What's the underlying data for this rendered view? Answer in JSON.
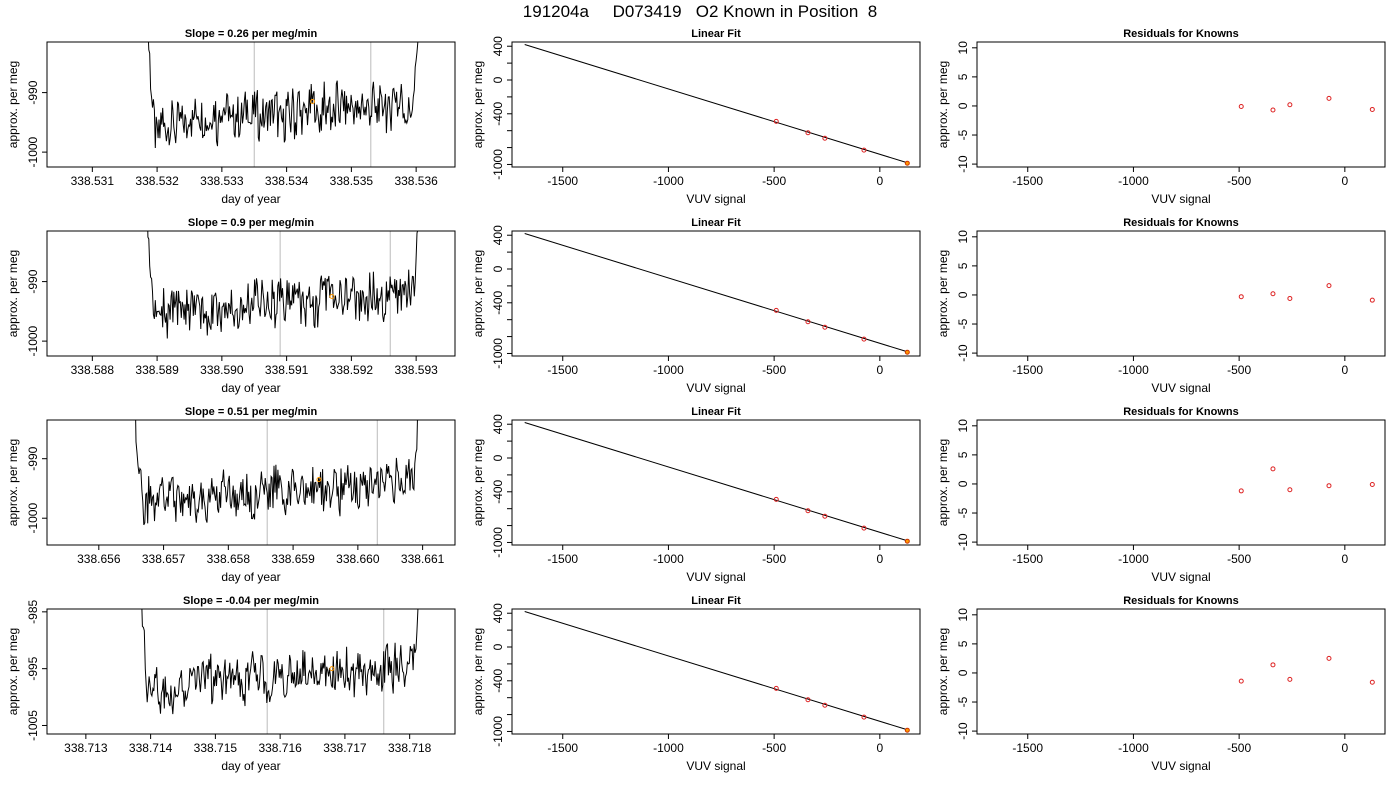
{
  "title": "191204a     D073419   O2 Known in Position  8",
  "colors": {
    "trace": "#000000",
    "vline": "#bbbbbb",
    "point": "#dd2222",
    "highlight": "#ff9900",
    "fitline": "#000000"
  },
  "chart_data": [
    {
      "type": "line",
      "row": 0,
      "title": "Slope =  0.26  per meg/min",
      "xlabel": "day of year",
      "ylabel": "approx. per meg",
      "xlim": [
        338.5303,
        338.5366
      ],
      "ylim": [
        -1002.5,
        -981.5
      ],
      "xticks": [
        "338.531",
        "338.532",
        "338.533",
        "338.534",
        "338.535",
        "338.536"
      ],
      "yticks": [
        "-1000",
        "-990"
      ],
      "vlines": [
        338.5335,
        338.5353
      ],
      "marker": [
        338.5344,
        -991.5
      ],
      "trace_start": 338.5318,
      "trace_end": 338.5361,
      "baseline": -993.5
    },
    {
      "type": "scatter",
      "row": 0,
      "title": "Linear Fit",
      "xlabel": "VUV signal",
      "ylabel": "approx. per meg",
      "xlim": [
        -1740,
        190
      ],
      "ylim": [
        -1030,
        450
      ],
      "xticks": [
        "-1500",
        "-1000",
        "-500",
        "0"
      ],
      "yticks": [
        "-1000",
        "-800",
        "-600",
        "-400",
        "-200",
        "0",
        "200",
        "400"
      ],
      "ytick_labels": [
        "-1000",
        "",
        "",
        "-400",
        "",
        "0",
        "",
        "400"
      ],
      "fit_line": [
        [
          -1680,
          420
        ],
        [
          130,
          -980
        ]
      ],
      "points": [
        [
          -490,
          -490
        ],
        [
          -340,
          -625
        ],
        [
          -260,
          -690
        ],
        [
          -75,
          -830
        ],
        [
          130,
          -985
        ]
      ]
    },
    {
      "type": "scatter",
      "row": 0,
      "title": "Residuals for Knowns",
      "xlabel": "VUV signal",
      "ylabel": "approx. per meg",
      "xlim": [
        -1740,
        190
      ],
      "ylim": [
        -10.5,
        11
      ],
      "xticks": [
        "-1500",
        "-1000",
        "-500",
        "0"
      ],
      "yticks": [
        "-10",
        "-5",
        "0",
        "5",
        "10"
      ],
      "points": [
        [
          -490,
          -0.1
        ],
        [
          -340,
          -0.7
        ],
        [
          -260,
          0.2
        ],
        [
          -75,
          1.3
        ],
        [
          130,
          -0.6
        ]
      ]
    },
    {
      "type": "line",
      "row": 1,
      "title": "Slope =  0.9  per meg/min",
      "xlabel": "day of year",
      "ylabel": "approx. per meg",
      "xlim": [
        338.5873,
        338.5936
      ],
      "ylim": [
        -1002.5,
        -981.5
      ],
      "xticks": [
        "338.588",
        "338.589",
        "338.590",
        "338.591",
        "338.592",
        "338.593"
      ],
      "yticks": [
        "-1000",
        "-990"
      ],
      "vlines": [
        338.5909,
        338.5926
      ],
      "marker": [
        338.5917,
        -992.5
      ],
      "trace_start": 338.5888,
      "trace_end": 338.5931,
      "baseline": -994
    },
    {
      "type": "scatter",
      "row": 1,
      "title": "Linear Fit",
      "xlabel": "VUV signal",
      "ylabel": "approx. per meg",
      "xlim": [
        -1740,
        190
      ],
      "ylim": [
        -1030,
        450
      ],
      "xticks": [
        "-1500",
        "-1000",
        "-500",
        "0"
      ],
      "yticks": [
        "-1000",
        "-800",
        "-600",
        "-400",
        "-200",
        "0",
        "200",
        "400"
      ],
      "ytick_labels": [
        "-1000",
        "",
        "",
        "-400",
        "",
        "0",
        "",
        "400"
      ],
      "fit_line": [
        [
          -1680,
          420
        ],
        [
          130,
          -980
        ]
      ],
      "points": [
        [
          -490,
          -490
        ],
        [
          -340,
          -625
        ],
        [
          -260,
          -690
        ],
        [
          -75,
          -830
        ],
        [
          130,
          -985
        ]
      ]
    },
    {
      "type": "scatter",
      "row": 1,
      "title": "Residuals for Knowns",
      "xlabel": "VUV signal",
      "ylabel": "approx. per meg",
      "xlim": [
        -1740,
        190
      ],
      "ylim": [
        -10.5,
        11
      ],
      "xticks": [
        "-1500",
        "-1000",
        "-500",
        "0"
      ],
      "yticks": [
        "-10",
        "-5",
        "0",
        "5",
        "10"
      ],
      "points": [
        [
          -490,
          -0.3
        ],
        [
          -340,
          0.2
        ],
        [
          -260,
          -0.6
        ],
        [
          -75,
          1.6
        ],
        [
          130,
          -0.9
        ]
      ]
    },
    {
      "type": "line",
      "row": 2,
      "title": "Slope =  0.51  per meg/min",
      "xlabel": "day of year",
      "ylabel": "approx. per meg",
      "xlim": [
        338.6552,
        338.6615
      ],
      "ylim": [
        -1004.5,
        -983.5
      ],
      "xticks": [
        "338.656",
        "338.657",
        "338.658",
        "338.659",
        "338.660",
        "338.661"
      ],
      "yticks": [
        "-1000",
        "-990"
      ],
      "vlines": [
        338.6586,
        338.6603
      ],
      "marker": [
        338.6594,
        -993.5
      ],
      "trace_start": 338.6565,
      "trace_end": 338.661,
      "baseline": -995.5
    },
    {
      "type": "scatter",
      "row": 2,
      "title": "Linear Fit",
      "xlabel": "VUV signal",
      "ylabel": "approx. per meg",
      "xlim": [
        -1740,
        190
      ],
      "ylim": [
        -1030,
        450
      ],
      "xticks": [
        "-1500",
        "-1000",
        "-500",
        "0"
      ],
      "yticks": [
        "-1000",
        "-800",
        "-600",
        "-400",
        "-200",
        "0",
        "200",
        "400"
      ],
      "ytick_labels": [
        "-1000",
        "",
        "",
        "-400",
        "",
        "0",
        "",
        "400"
      ],
      "fit_line": [
        [
          -1680,
          420
        ],
        [
          130,
          -980
        ]
      ],
      "points": [
        [
          -490,
          -490
        ],
        [
          -340,
          -625
        ],
        [
          -260,
          -690
        ],
        [
          -75,
          -830
        ],
        [
          130,
          -985
        ]
      ]
    },
    {
      "type": "scatter",
      "row": 2,
      "title": "Residuals for Knowns",
      "xlabel": "VUV signal",
      "ylabel": "approx. per meg",
      "xlim": [
        -1740,
        190
      ],
      "ylim": [
        -10.5,
        11
      ],
      "xticks": [
        "-1500",
        "-1000",
        "-500",
        "0"
      ],
      "yticks": [
        "-10",
        "-5",
        "0",
        "5",
        "10"
      ],
      "points": [
        [
          -490,
          -1.2
        ],
        [
          -340,
          2.6
        ],
        [
          -260,
          -1.0
        ],
        [
          -75,
          -0.3
        ],
        [
          130,
          -0.1
        ]
      ]
    },
    {
      "type": "line",
      "row": 3,
      "title": "Slope =  -0.04  per meg/min",
      "xlabel": "day of year",
      "ylabel": "approx. per meg",
      "xlim": [
        338.7124,
        338.7187
      ],
      "ylim": [
        -1006.5,
        -984.5
      ],
      "xticks": [
        "338.713",
        "338.714",
        "338.715",
        "338.716",
        "338.717",
        "338.718"
      ],
      "yticks": [
        "-1005",
        "-995",
        "-985"
      ],
      "vlines": [
        338.7158,
        338.7176
      ],
      "marker": [
        338.7168,
        -995
      ],
      "trace_start": 338.7138,
      "trace_end": 338.7182,
      "baseline": -996.5
    },
    {
      "type": "scatter",
      "row": 3,
      "title": "Linear Fit",
      "xlabel": "VUV signal",
      "ylabel": "approx. per meg",
      "xlim": [
        -1740,
        190
      ],
      "ylim": [
        -1030,
        450
      ],
      "xticks": [
        "-1500",
        "-1000",
        "-500",
        "0"
      ],
      "yticks": [
        "-1000",
        "-800",
        "-600",
        "-400",
        "-200",
        "0",
        "200",
        "400"
      ],
      "ytick_labels": [
        "-1000",
        "",
        "",
        "-400",
        "",
        "0",
        "",
        "400"
      ],
      "fit_line": [
        [
          -1680,
          420
        ],
        [
          130,
          -980
        ]
      ],
      "points": [
        [
          -490,
          -490
        ],
        [
          -340,
          -625
        ],
        [
          -260,
          -690
        ],
        [
          -75,
          -830
        ],
        [
          130,
          -985
        ]
      ]
    },
    {
      "type": "scatter",
      "row": 3,
      "title": "Residuals for Knowns",
      "xlabel": "VUV signal",
      "ylabel": "approx. per meg",
      "xlim": [
        -1740,
        190
      ],
      "ylim": [
        -10.5,
        11
      ],
      "xticks": [
        "-1500",
        "-1000",
        "-500",
        "0"
      ],
      "yticks": [
        "-10",
        "-5",
        "0",
        "5",
        "10"
      ],
      "points": [
        [
          -490,
          -1.4
        ],
        [
          -340,
          1.4
        ],
        [
          -260,
          -1.1
        ],
        [
          -75,
          2.5
        ],
        [
          130,
          -1.6
        ]
      ]
    }
  ]
}
